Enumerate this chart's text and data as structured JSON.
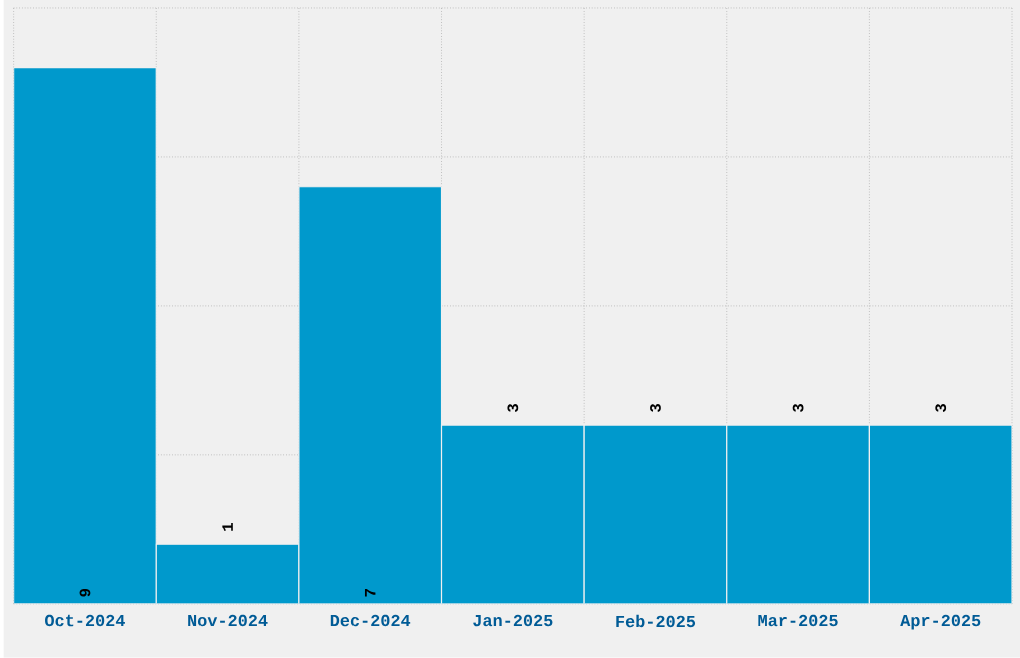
{
  "chart_data": {
    "type": "bar",
    "categories": [
      "Oct-2024",
      "Nov-2024",
      "Dec-2024",
      "Jan-2025",
      "Feb-2025",
      "Mar-2025",
      "Apr-2025"
    ],
    "values": [
      9,
      1,
      7,
      3,
      3,
      3,
      3
    ],
    "color": "#0099cc",
    "ylim": [
      0,
      10
    ],
    "yticks": [
      {
        "value": 0,
        "label": null
      },
      {
        "value": 2.5,
        "label": null
      },
      {
        "value": 5,
        "label": null
      },
      {
        "value": 7.5,
        "label": null
      },
      {
        "value": 10,
        "label": null
      }
    ],
    "tick_labels": "x",
    "grid": true,
    "data_labels": true
  }
}
